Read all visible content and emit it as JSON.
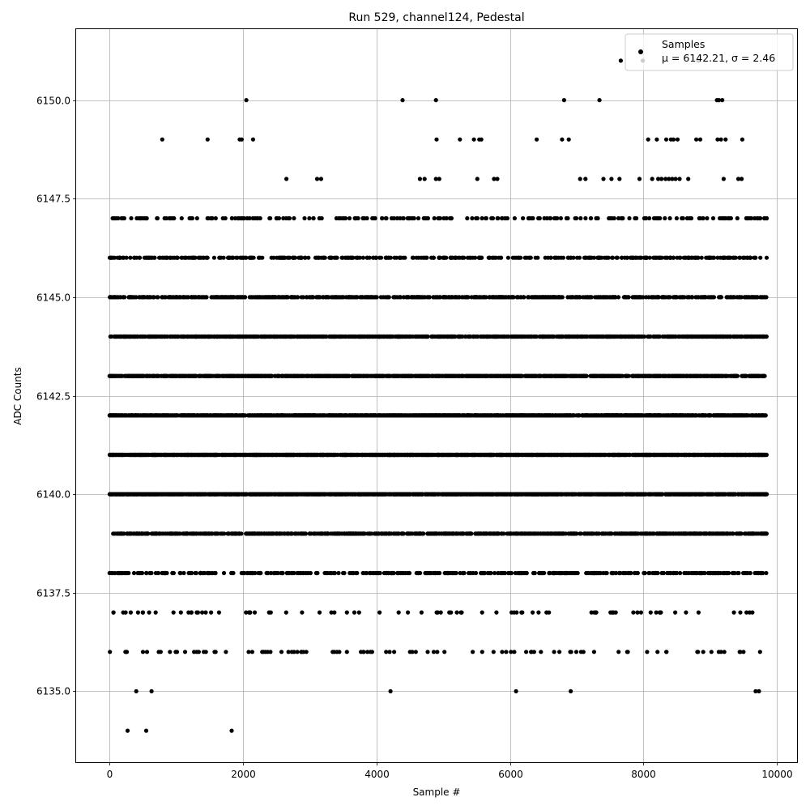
{
  "chart_data": {
    "type": "scatter",
    "title": "Run 529, channel124, Pedestal",
    "xlabel": "Sample #",
    "ylabel": "ADC Counts",
    "xlim": [
      -500,
      10300
    ],
    "ylim": [
      6133.2,
      6151.8
    ],
    "xticks": [
      0,
      2000,
      4000,
      6000,
      8000,
      10000
    ],
    "xtick_labels": [
      "0",
      "2000",
      "4000",
      "6000",
      "8000",
      "10000"
    ],
    "yticks": [
      6135.0,
      6137.5,
      6140.0,
      6142.5,
      6145.0,
      6147.5,
      6150.0
    ],
    "ytick_labels": [
      "6135.0",
      "6137.5",
      "6140.0",
      "6142.5",
      "6145.0",
      "6147.5",
      "6150.0"
    ],
    "grid": true,
    "legend_position": "top-right",
    "series": [
      {
        "name": "Samples",
        "marker": "dot",
        "color": "#000000",
        "sample_range": [
          0,
          9850
        ],
        "level_counts": {
          "6134": 3,
          "6135": 8,
          "6136": 95,
          "6137": 85,
          "6138": 420,
          "6139": 900,
          "6140": 1500,
          "6141": 1800,
          "6142": 1800,
          "6143": 1450,
          "6144": 1000,
          "6145": 700,
          "6146": 420,
          "6147": 230,
          "6148": 40,
          "6149": 30,
          "6150": 8,
          "6151": 3
        },
        "outliers": [
          {
            "x": 270,
            "y": 6134
          },
          {
            "x": 550,
            "y": 6134
          },
          {
            "x": 1830,
            "y": 6134
          },
          {
            "x": 400,
            "y": 6135
          },
          {
            "x": 630,
            "y": 6135
          },
          {
            "x": 4210,
            "y": 6135
          },
          {
            "x": 6090,
            "y": 6135
          },
          {
            "x": 6910,
            "y": 6135
          },
          {
            "x": 9680,
            "y": 6135
          },
          {
            "x": 9730,
            "y": 6135
          },
          {
            "x": 2050,
            "y": 6150
          },
          {
            "x": 4390,
            "y": 6150
          },
          {
            "x": 4890,
            "y": 6150
          },
          {
            "x": 6810,
            "y": 6150
          },
          {
            "x": 7340,
            "y": 6150
          },
          {
            "x": 9100,
            "y": 6150
          },
          {
            "x": 9130,
            "y": 6150
          },
          {
            "x": 9180,
            "y": 6150
          },
          {
            "x": 7660,
            "y": 6151
          },
          {
            "x": 7990,
            "y": 6151
          },
          {
            "x": 8820,
            "y": 6151
          },
          {
            "x": 790,
            "y": 6149
          },
          {
            "x": 1470,
            "y": 6149
          },
          {
            "x": 1950,
            "y": 6149
          },
          {
            "x": 1980,
            "y": 6149
          },
          {
            "x": 2150,
            "y": 6149
          },
          {
            "x": 4900,
            "y": 6149
          },
          {
            "x": 5250,
            "y": 6149
          },
          {
            "x": 5460,
            "y": 6149
          },
          {
            "x": 5540,
            "y": 6149
          },
          {
            "x": 5570,
            "y": 6149
          },
          {
            "x": 6400,
            "y": 6149
          },
          {
            "x": 6780,
            "y": 6149
          },
          {
            "x": 6880,
            "y": 6149
          },
          {
            "x": 8070,
            "y": 6149
          },
          {
            "x": 8200,
            "y": 6149
          },
          {
            "x": 8340,
            "y": 6149
          },
          {
            "x": 8410,
            "y": 6149
          },
          {
            "x": 8450,
            "y": 6149
          },
          {
            "x": 8510,
            "y": 6149
          },
          {
            "x": 8790,
            "y": 6149
          },
          {
            "x": 8850,
            "y": 6149
          },
          {
            "x": 9110,
            "y": 6149
          },
          {
            "x": 9160,
            "y": 6149
          },
          {
            "x": 9230,
            "y": 6149
          },
          {
            "x": 9480,
            "y": 6149
          },
          {
            "x": 2650,
            "y": 6148
          },
          {
            "x": 3110,
            "y": 6148
          },
          {
            "x": 3170,
            "y": 6148
          },
          {
            "x": 4650,
            "y": 6148
          },
          {
            "x": 4720,
            "y": 6148
          },
          {
            "x": 4890,
            "y": 6148
          },
          {
            "x": 4940,
            "y": 6148
          },
          {
            "x": 5510,
            "y": 6148
          },
          {
            "x": 5760,
            "y": 6148
          },
          {
            "x": 5810,
            "y": 6148
          },
          {
            "x": 7050,
            "y": 6148
          },
          {
            "x": 7130,
            "y": 6148
          },
          {
            "x": 7400,
            "y": 6148
          },
          {
            "x": 7520,
            "y": 6148
          },
          {
            "x": 7640,
            "y": 6148
          },
          {
            "x": 7940,
            "y": 6148
          },
          {
            "x": 8130,
            "y": 6148
          },
          {
            "x": 8220,
            "y": 6148
          },
          {
            "x": 8270,
            "y": 6148
          },
          {
            "x": 8330,
            "y": 6148
          },
          {
            "x": 8380,
            "y": 6148
          },
          {
            "x": 8430,
            "y": 6148
          },
          {
            "x": 8480,
            "y": 6148
          },
          {
            "x": 8540,
            "y": 6148
          },
          {
            "x": 8670,
            "y": 6148
          },
          {
            "x": 9200,
            "y": 6148
          },
          {
            "x": 9420,
            "y": 6148
          },
          {
            "x": 9470,
            "y": 6148
          }
        ]
      }
    ],
    "legend": {
      "series_label": "Samples",
      "stats_label": "μ = 6142.21, σ = 2.46"
    }
  }
}
